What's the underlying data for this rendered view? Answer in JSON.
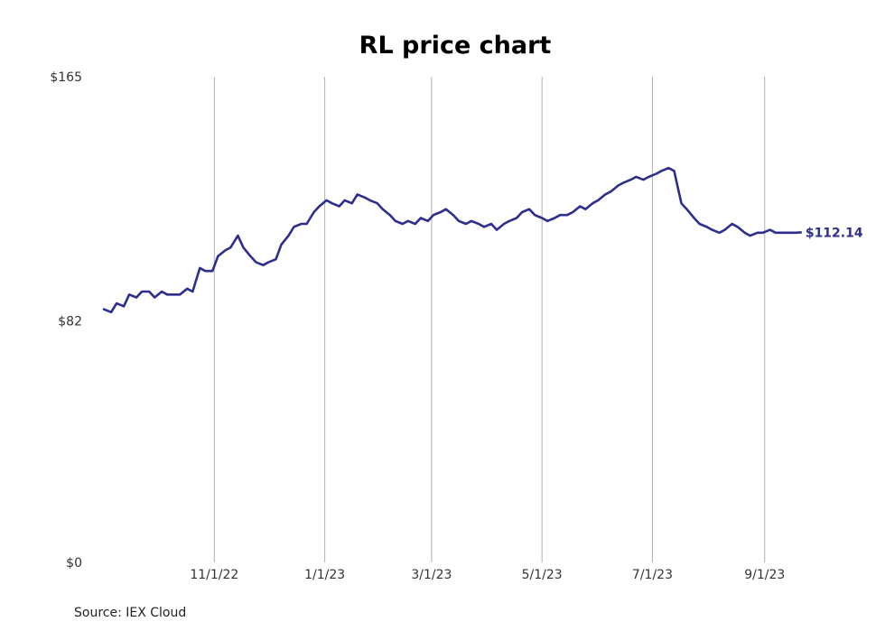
{
  "chart_data": {
    "type": "line",
    "title": "RL price chart",
    "source": "Source: IEX Cloud",
    "xlabel": "",
    "ylabel": "",
    "x_ticks": [
      "11/1/22",
      "1/1/23",
      "3/1/23",
      "5/1/23",
      "7/1/23",
      "9/1/23"
    ],
    "y_ticks": [
      "$0",
      "$82",
      "$165"
    ],
    "ylim": [
      0,
      165
    ],
    "xlim": [
      "2022-08-22",
      "2023-10-25"
    ],
    "grid": "vertical",
    "line_color": "#2e2e8c",
    "last_value_label": "$112.14",
    "series": [
      {
        "x": [
          "2022-09-01",
          "2022-09-05",
          "2022-09-08",
          "2022-09-12",
          "2022-09-15",
          "2022-09-19",
          "2022-09-22",
          "2022-09-26",
          "2022-09-29",
          "2022-10-03",
          "2022-10-06",
          "2022-10-10",
          "2022-10-13",
          "2022-10-17",
          "2022-10-20",
          "2022-10-24",
          "2022-10-27",
          "2022-10-31",
          "2022-11-03",
          "2022-11-07",
          "2022-11-10",
          "2022-11-14",
          "2022-11-17",
          "2022-11-21",
          "2022-11-24",
          "2022-11-28",
          "2022-12-01",
          "2022-12-05",
          "2022-12-08",
          "2022-12-12",
          "2022-12-15",
          "2022-12-19",
          "2022-12-22",
          "2022-12-26",
          "2022-12-29",
          "2023-01-02",
          "2023-01-05",
          "2023-01-09",
          "2023-01-12",
          "2023-01-16",
          "2023-01-19",
          "2023-01-23",
          "2023-01-26",
          "2023-01-30",
          "2023-02-02",
          "2023-02-06",
          "2023-02-09",
          "2023-02-13",
          "2023-02-16",
          "2023-02-20",
          "2023-02-23",
          "2023-02-27",
          "2023-03-02",
          "2023-03-06",
          "2023-03-09",
          "2023-03-13",
          "2023-03-16",
          "2023-03-20",
          "2023-03-23",
          "2023-03-27",
          "2023-03-30",
          "2023-04-03",
          "2023-04-06",
          "2023-04-10",
          "2023-04-13",
          "2023-04-17",
          "2023-04-20",
          "2023-04-24",
          "2023-04-27",
          "2023-05-01",
          "2023-05-04",
          "2023-05-08",
          "2023-05-11",
          "2023-05-15",
          "2023-05-18",
          "2023-05-22",
          "2023-05-25",
          "2023-05-29",
          "2023-06-01",
          "2023-06-05",
          "2023-06-08",
          "2023-06-12",
          "2023-06-15",
          "2023-06-19",
          "2023-06-22",
          "2023-06-26",
          "2023-06-29",
          "2023-07-03",
          "2023-07-06",
          "2023-07-10",
          "2023-07-13",
          "2023-07-17",
          "2023-07-20",
          "2023-07-24",
          "2023-07-27",
          "2023-07-31",
          "2023-08-03",
          "2023-08-07",
          "2023-08-10",
          "2023-08-14",
          "2023-08-17",
          "2023-08-21",
          "2023-08-24",
          "2023-08-28",
          "2023-08-31",
          "2023-09-04",
          "2023-09-07",
          "2023-09-11",
          "2023-09-14",
          "2023-09-18",
          "2023-09-21"
        ],
        "y": [
          86,
          85,
          88,
          87,
          91,
          90,
          92,
          92,
          90,
          92,
          91,
          91,
          91,
          93,
          92,
          100,
          99,
          99,
          104,
          106,
          107,
          111,
          107,
          104,
          102,
          101,
          102,
          103,
          108,
          111,
          114,
          115,
          115,
          119,
          121,
          123,
          122,
          121,
          123,
          122,
          125,
          124,
          123,
          122,
          120,
          118,
          116,
          115,
          116,
          115,
          117,
          116,
          118,
          119,
          120,
          118,
          116,
          115,
          116,
          115,
          114,
          115,
          113,
          115,
          116,
          117,
          119,
          120,
          118,
          117,
          116,
          117,
          118,
          118,
          119,
          121,
          120,
          122,
          123,
          125,
          126,
          128,
          129,
          130,
          131,
          130,
          131,
          132,
          133,
          134,
          133,
          122,
          120,
          117,
          115,
          114,
          113,
          112,
          113,
          115,
          114,
          112,
          111,
          112,
          112,
          113,
          112,
          112,
          112,
          112,
          112.14
        ]
      }
    ]
  }
}
